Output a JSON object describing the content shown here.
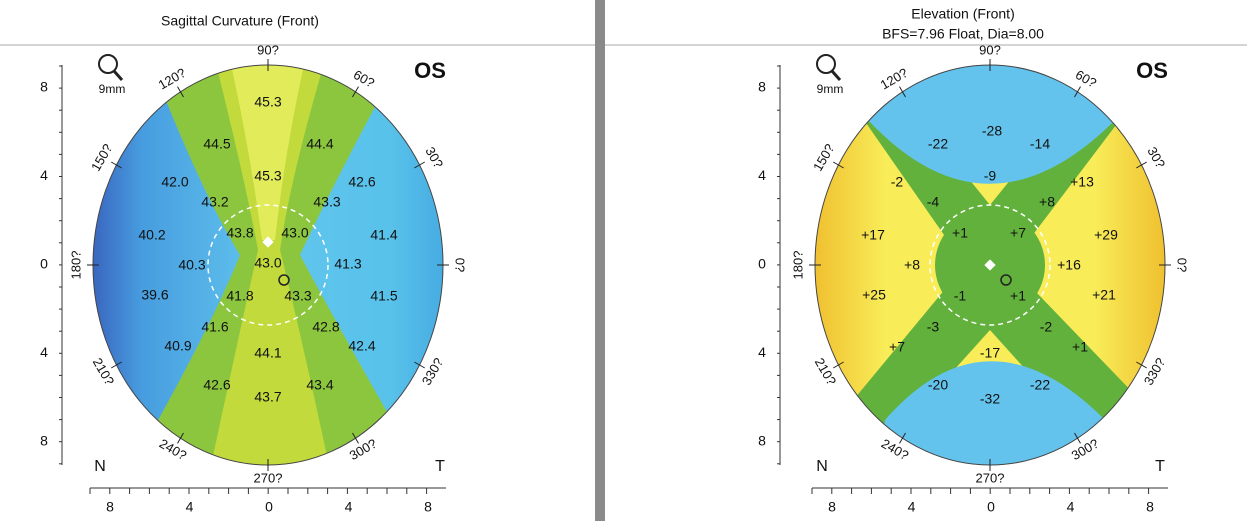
{
  "panels": [
    {
      "title": "Sagittal Curvature (Front)",
      "eye": "OS",
      "zoom_label": "9mm",
      "angle_labels": [
        "90?",
        "120?",
        "60?",
        "150?",
        "30?",
        "180?",
        "0?",
        "210?",
        "330?",
        "240?",
        "300?",
        "270?"
      ],
      "y_axis_labels": [
        "8",
        "4",
        "0",
        "4",
        "8"
      ],
      "x_axis_labels": [
        "8",
        "4",
        "0",
        "4",
        "8"
      ],
      "nasal_label": "N",
      "temporal_label": "T",
      "map_values": [
        "45.3",
        "44.5",
        "44.4",
        "45.3",
        "42.0",
        "42.6",
        "43.2",
        "43.3",
        "43.8",
        "43.0",
        "40.2",
        "41.4",
        "40.3",
        "43.0",
        "41.3",
        "39.6",
        "41.8",
        "43.3",
        "41.5",
        "41.6",
        "42.8",
        "40.9",
        "44.1",
        "42.4",
        "42.6",
        "43.4",
        "43.7"
      ]
    },
    {
      "title": "Elevation (Front)",
      "subtitle": "BFS=7.96 Float, Dia=8.00",
      "eye": "OS",
      "zoom_label": "9mm",
      "angle_labels": [
        "90?",
        "120?",
        "60?",
        "150?",
        "30?",
        "180?",
        "0?",
        "210?",
        "330?",
        "240?",
        "300?",
        "270?"
      ],
      "y_axis_labels": [
        "8",
        "4",
        "0",
        "4",
        "8"
      ],
      "x_axis_labels": [
        "8",
        "4",
        "0",
        "4",
        "8"
      ],
      "nasal_label": "N",
      "temporal_label": "T",
      "map_values": [
        "-28",
        "-22",
        "-14",
        "-9",
        "-2",
        "+13",
        "-4",
        "+8",
        "+17",
        "+1",
        "+7",
        "+29",
        "+8",
        "+16",
        "+25",
        "-1",
        "+1",
        "+21",
        "-3",
        "-2",
        "+7",
        "+1",
        "-17",
        "-20",
        "-22",
        "-32"
      ]
    }
  ]
}
